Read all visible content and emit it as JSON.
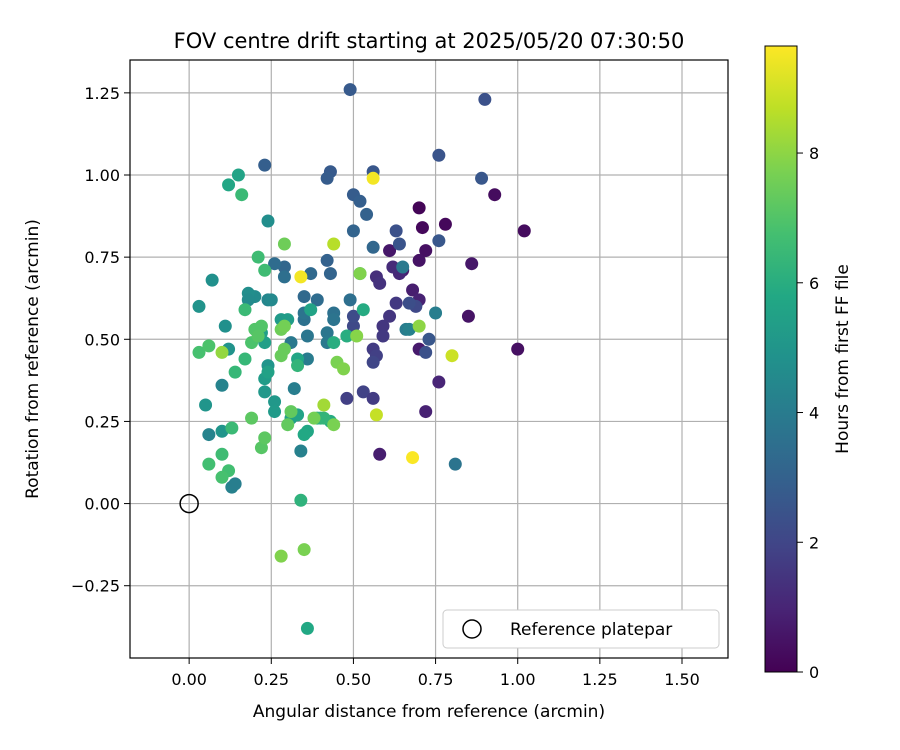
{
  "chart_data": {
    "type": "scatter",
    "title": "FOV centre drift starting at 2025/05/20 07:30:50",
    "xlabel": "Angular distance from reference (arcmin)",
    "ylabel": "Rotation from reference (arcmin)",
    "xlim": [
      -0.18,
      1.64
    ],
    "ylim": [
      -0.47,
      1.35
    ],
    "xticks": [
      "0.00",
      "0.25",
      "0.50",
      "0.75",
      "1.00",
      "1.25",
      "1.50"
    ],
    "yticks": [
      "−0.25",
      "0.00",
      "0.25",
      "0.50",
      "0.75",
      "1.00",
      "1.25"
    ],
    "grid": true,
    "legend": {
      "placement": "lower-right",
      "entries": [
        "Reference platepar"
      ]
    },
    "reference_point": {
      "x": 0.0,
      "y": 0.0
    },
    "colorbar": {
      "label": "Hours from first FF file",
      "range": [
        0,
        9.65
      ],
      "ticks": [
        "0",
        "2",
        "4",
        "6",
        "8"
      ],
      "colormap": "viridis"
    },
    "series": [
      {
        "points": [
          {
            "x": 0.7,
            "y": 0.9,
            "t": 0.1
          },
          {
            "x": 0.71,
            "y": 0.84,
            "t": 0.2
          },
          {
            "x": 0.78,
            "y": 0.85,
            "t": 0.2
          },
          {
            "x": 0.93,
            "y": 0.94,
            "t": 0.3
          },
          {
            "x": 1.02,
            "y": 0.83,
            "t": 0.3
          },
          {
            "x": 1.0,
            "y": 0.47,
            "t": 0.4
          },
          {
            "x": 0.85,
            "y": 0.57,
            "t": 0.5
          },
          {
            "x": 0.86,
            "y": 0.73,
            "t": 0.6
          },
          {
            "x": 0.72,
            "y": 0.77,
            "t": 0.4
          },
          {
            "x": 0.7,
            "y": 0.74,
            "t": 0.5
          },
          {
            "x": 0.61,
            "y": 0.77,
            "t": 0.6
          },
          {
            "x": 0.65,
            "y": 0.71,
            "t": 0.7
          },
          {
            "x": 0.68,
            "y": 0.65,
            "t": 0.8
          },
          {
            "x": 0.7,
            "y": 0.62,
            "t": 0.9
          },
          {
            "x": 0.7,
            "y": 0.47,
            "t": 0.7
          },
          {
            "x": 0.72,
            "y": 0.28,
            "t": 0.9
          },
          {
            "x": 0.76,
            "y": 0.37,
            "t": 1.0
          },
          {
            "x": 0.58,
            "y": 0.15,
            "t": 0.8
          },
          {
            "x": 0.64,
            "y": 0.7,
            "t": 1.1
          },
          {
            "x": 0.62,
            "y": 0.72,
            "t": 1.2
          },
          {
            "x": 0.57,
            "y": 0.69,
            "t": 1.3
          },
          {
            "x": 0.58,
            "y": 0.67,
            "t": 1.4
          },
          {
            "x": 0.61,
            "y": 0.57,
            "t": 1.5
          },
          {
            "x": 0.63,
            "y": 0.61,
            "t": 1.6
          },
          {
            "x": 0.59,
            "y": 0.54,
            "t": 1.5
          },
          {
            "x": 0.59,
            "y": 0.51,
            "t": 1.6
          },
          {
            "x": 0.56,
            "y": 0.47,
            "t": 1.7
          },
          {
            "x": 0.57,
            "y": 0.45,
            "t": 1.8
          },
          {
            "x": 0.56,
            "y": 0.43,
            "t": 2.0
          },
          {
            "x": 0.53,
            "y": 0.34,
            "t": 1.9
          },
          {
            "x": 0.56,
            "y": 0.32,
            "t": 1.7
          },
          {
            "x": 0.48,
            "y": 0.32,
            "t": 1.8
          },
          {
            "x": 0.5,
            "y": 0.54,
            "t": 2.1
          },
          {
            "x": 0.5,
            "y": 0.57,
            "t": 2.2
          },
          {
            "x": 0.69,
            "y": 0.6,
            "t": 2.1
          },
          {
            "x": 0.67,
            "y": 0.61,
            "t": 2.3
          },
          {
            "x": 0.72,
            "y": 0.46,
            "t": 2.4
          },
          {
            "x": 0.73,
            "y": 0.5,
            "t": 2.6
          },
          {
            "x": 0.63,
            "y": 0.83,
            "t": 2.4
          },
          {
            "x": 0.64,
            "y": 0.79,
            "t": 2.5
          },
          {
            "x": 0.76,
            "y": 0.8,
            "t": 2.6
          },
          {
            "x": 0.76,
            "y": 1.06,
            "t": 2.5
          },
          {
            "x": 0.9,
            "y": 1.23,
            "t": 2.4
          },
          {
            "x": 0.89,
            "y": 0.99,
            "t": 2.6
          },
          {
            "x": 0.49,
            "y": 1.26,
            "t": 2.7
          },
          {
            "x": 0.56,
            "y": 1.01,
            "t": 2.6
          },
          {
            "x": 0.43,
            "y": 1.01,
            "t": 2.7
          },
          {
            "x": 0.42,
            "y": 0.99,
            "t": 2.8
          },
          {
            "x": 0.23,
            "y": 1.03,
            "t": 2.9
          },
          {
            "x": 0.5,
            "y": 0.94,
            "t": 2.8
          },
          {
            "x": 0.52,
            "y": 0.92,
            "t": 2.9
          },
          {
            "x": 0.54,
            "y": 0.88,
            "t": 3.0
          },
          {
            "x": 0.5,
            "y": 0.83,
            "t": 3.1
          },
          {
            "x": 0.56,
            "y": 0.78,
            "t": 3.2
          },
          {
            "x": 0.42,
            "y": 0.74,
            "t": 3.0
          },
          {
            "x": 0.43,
            "y": 0.7,
            "t": 3.1
          },
          {
            "x": 0.37,
            "y": 0.7,
            "t": 3.3
          },
          {
            "x": 0.29,
            "y": 0.72,
            "t": 3.2
          },
          {
            "x": 0.26,
            "y": 0.73,
            "t": 3.4
          },
          {
            "x": 0.29,
            "y": 0.69,
            "t": 3.5
          },
          {
            "x": 0.35,
            "y": 0.63,
            "t": 3.3
          },
          {
            "x": 0.39,
            "y": 0.62,
            "t": 3.4
          },
          {
            "x": 0.49,
            "y": 0.62,
            "t": 3.5
          },
          {
            "x": 0.44,
            "y": 0.58,
            "t": 3.6
          },
          {
            "x": 0.44,
            "y": 0.56,
            "t": 3.7
          },
          {
            "x": 0.35,
            "y": 0.56,
            "t": 3.6
          },
          {
            "x": 0.35,
            "y": 0.58,
            "t": 3.7
          },
          {
            "x": 0.42,
            "y": 0.52,
            "t": 3.8
          },
          {
            "x": 0.42,
            "y": 0.49,
            "t": 3.9
          },
          {
            "x": 0.36,
            "y": 0.51,
            "t": 3.8
          },
          {
            "x": 0.31,
            "y": 0.49,
            "t": 3.9
          },
          {
            "x": 0.36,
            "y": 0.44,
            "t": 4.0
          },
          {
            "x": 0.32,
            "y": 0.35,
            "t": 4.1
          },
          {
            "x": 0.34,
            "y": 0.16,
            "t": 4.2
          },
          {
            "x": 0.81,
            "y": 0.12,
            "t": 3.7
          },
          {
            "x": 0.65,
            "y": 0.72,
            "t": 3.9
          },
          {
            "x": 0.66,
            "y": 0.53,
            "t": 4.0
          },
          {
            "x": 0.75,
            "y": 0.58,
            "t": 4.1
          },
          {
            "x": 0.67,
            "y": 0.53,
            "t": 4.2
          },
          {
            "x": 0.13,
            "y": 0.05,
            "t": 4.2
          },
          {
            "x": 0.14,
            "y": 0.06,
            "t": 4.1
          },
          {
            "x": 0.06,
            "y": 0.21,
            "t": 4.3
          },
          {
            "x": 0.1,
            "y": 0.36,
            "t": 4.3
          },
          {
            "x": 0.24,
            "y": 0.62,
            "t": 4.4
          },
          {
            "x": 0.25,
            "y": 0.62,
            "t": 4.5
          },
          {
            "x": 0.2,
            "y": 0.63,
            "t": 4.6
          },
          {
            "x": 0.18,
            "y": 0.64,
            "t": 4.7
          },
          {
            "x": 0.18,
            "y": 0.62,
            "t": 4.6
          },
          {
            "x": 0.24,
            "y": 0.86,
            "t": 4.7
          },
          {
            "x": 0.11,
            "y": 0.54,
            "t": 4.8
          },
          {
            "x": 0.07,
            "y": 0.68,
            "t": 4.8
          },
          {
            "x": 0.03,
            "y": 0.6,
            "t": 4.9
          },
          {
            "x": 0.12,
            "y": 0.47,
            "t": 4.9
          },
          {
            "x": 0.05,
            "y": 0.3,
            "t": 5.0
          },
          {
            "x": 0.1,
            "y": 0.22,
            "t": 5.0
          },
          {
            "x": 0.24,
            "y": 0.42,
            "t": 5.0
          },
          {
            "x": 0.23,
            "y": 0.34,
            "t": 5.1
          },
          {
            "x": 0.26,
            "y": 0.31,
            "t": 5.1
          },
          {
            "x": 0.26,
            "y": 0.28,
            "t": 5.2
          },
          {
            "x": 0.28,
            "y": 0.56,
            "t": 5.2
          },
          {
            "x": 0.3,
            "y": 0.56,
            "t": 5.3
          },
          {
            "x": 0.23,
            "y": 0.38,
            "t": 5.3
          },
          {
            "x": 0.22,
            "y": 0.52,
            "t": 5.4
          },
          {
            "x": 0.23,
            "y": 0.49,
            "t": 5.4
          },
          {
            "x": 0.24,
            "y": 0.4,
            "t": 5.5
          },
          {
            "x": 0.31,
            "y": 0.26,
            "t": 5.5
          },
          {
            "x": 0.33,
            "y": 0.27,
            "t": 5.6
          },
          {
            "x": 0.37,
            "y": 0.59,
            "t": 5.6
          },
          {
            "x": 0.33,
            "y": 0.44,
            "t": 5.7
          },
          {
            "x": 0.36,
            "y": 0.22,
            "t": 5.7
          },
          {
            "x": 0.35,
            "y": 0.21,
            "t": 5.8
          },
          {
            "x": 0.36,
            "y": -0.38,
            "t": 5.8
          },
          {
            "x": 0.15,
            "y": 1.0,
            "t": 5.6
          },
          {
            "x": 0.12,
            "y": 0.97,
            "t": 5.7
          },
          {
            "x": 0.52,
            "y": 0.7,
            "t": 5.9
          },
          {
            "x": 0.53,
            "y": 0.59,
            "t": 5.9
          },
          {
            "x": 0.43,
            "y": 0.25,
            "t": 5.9
          },
          {
            "x": 0.44,
            "y": 0.49,
            "t": 6.0
          },
          {
            "x": 0.48,
            "y": 0.51,
            "t": 6.0
          },
          {
            "x": 0.39,
            "y": 0.26,
            "t": 6.1
          },
          {
            "x": 0.4,
            "y": 0.26,
            "t": 6.2
          },
          {
            "x": 0.41,
            "y": 0.26,
            "t": 6.3
          },
          {
            "x": 0.34,
            "y": 0.01,
            "t": 6.2
          },
          {
            "x": 0.33,
            "y": 0.42,
            "t": 6.3
          },
          {
            "x": 0.14,
            "y": 0.4,
            "t": 6.4
          },
          {
            "x": 0.17,
            "y": 0.44,
            "t": 6.4
          },
          {
            "x": 0.17,
            "y": 0.59,
            "t": 6.5
          },
          {
            "x": 0.16,
            "y": 0.94,
            "t": 6.5
          },
          {
            "x": 0.21,
            "y": 0.75,
            "t": 6.6
          },
          {
            "x": 0.23,
            "y": 0.71,
            "t": 6.6
          },
          {
            "x": 0.13,
            "y": 0.23,
            "t": 6.5
          },
          {
            "x": 0.12,
            "y": 0.1,
            "t": 6.7
          },
          {
            "x": 0.06,
            "y": 0.12,
            "t": 6.7
          },
          {
            "x": 0.1,
            "y": 0.15,
            "t": 6.6
          },
          {
            "x": 0.1,
            "y": 0.08,
            "t": 6.8
          },
          {
            "x": 0.03,
            "y": 0.46,
            "t": 6.8
          },
          {
            "x": 0.06,
            "y": 0.48,
            "t": 6.9
          },
          {
            "x": 0.19,
            "y": 0.49,
            "t": 6.9
          },
          {
            "x": 0.2,
            "y": 0.53,
            "t": 7.0
          },
          {
            "x": 0.22,
            "y": 0.54,
            "t": 7.0
          },
          {
            "x": 0.21,
            "y": 0.51,
            "t": 7.1
          },
          {
            "x": 0.22,
            "y": 0.17,
            "t": 7.1
          },
          {
            "x": 0.23,
            "y": 0.2,
            "t": 7.2
          },
          {
            "x": 0.19,
            "y": 0.26,
            "t": 7.2
          },
          {
            "x": 0.3,
            "y": 0.24,
            "t": 7.3
          },
          {
            "x": 0.31,
            "y": 0.28,
            "t": 7.3
          },
          {
            "x": 0.28,
            "y": 0.45,
            "t": 7.4
          },
          {
            "x": 0.29,
            "y": 0.47,
            "t": 7.4
          },
          {
            "x": 0.28,
            "y": 0.53,
            "t": 7.5
          },
          {
            "x": 0.29,
            "y": 0.54,
            "t": 7.6
          },
          {
            "x": 0.29,
            "y": 0.79,
            "t": 7.5
          },
          {
            "x": 0.38,
            "y": 0.26,
            "t": 7.6
          },
          {
            "x": 0.44,
            "y": 0.24,
            "t": 7.7
          },
          {
            "x": 0.45,
            "y": 0.43,
            "t": 7.7
          },
          {
            "x": 0.47,
            "y": 0.41,
            "t": 7.8
          },
          {
            "x": 0.52,
            "y": 0.7,
            "t": 7.8
          },
          {
            "x": 0.51,
            "y": 0.51,
            "t": 7.9
          },
          {
            "x": 0.7,
            "y": 0.54,
            "t": 8.0
          },
          {
            "x": 0.35,
            "y": -0.14,
            "t": 7.7
          },
          {
            "x": 0.28,
            "y": -0.16,
            "t": 7.8
          },
          {
            "x": 0.1,
            "y": 0.46,
            "t": 8.1
          },
          {
            "x": 0.41,
            "y": 0.3,
            "t": 8.3
          },
          {
            "x": 0.44,
            "y": 0.79,
            "t": 8.6
          },
          {
            "x": 0.57,
            "y": 0.27,
            "t": 8.8
          },
          {
            "x": 0.8,
            "y": 0.45,
            "t": 8.9
          },
          {
            "x": 0.34,
            "y": 0.69,
            "t": 9.5
          },
          {
            "x": 0.56,
            "y": 0.99,
            "t": 9.5
          },
          {
            "x": 0.68,
            "y": 0.14,
            "t": 9.6
          }
        ]
      }
    ]
  }
}
